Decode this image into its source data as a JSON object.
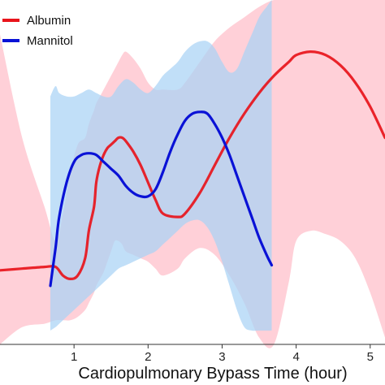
{
  "chart_data": {
    "type": "line",
    "title": "",
    "xlabel": "Cardiopulmonary Bypass Time (hour)",
    "ylabel": "",
    "xlim": [
      0,
      5.2
    ],
    "ylim": [
      0,
      1
    ],
    "x_ticks": [
      1,
      2,
      3,
      4,
      5
    ],
    "x_tick_labels": [
      "1",
      "2",
      "3",
      "4",
      "5"
    ],
    "grid": false,
    "legend_position": "top-left",
    "series": [
      {
        "name": "Albumin",
        "color": "#e8141b",
        "band_color": "#ffc0cb",
        "x": [
          0,
          0.3,
          0.6,
          0.75,
          0.85,
          0.95,
          1.05,
          1.15,
          1.2,
          1.27,
          1.3,
          1.35,
          1.4,
          1.45,
          1.5,
          1.55,
          1.6,
          1.65,
          1.7,
          1.8,
          1.9,
          2.0,
          2.1,
          2.2,
          2.4,
          2.5,
          2.7,
          2.9,
          3.1,
          3.3,
          3.5,
          3.7,
          3.9,
          4.0,
          4.2,
          4.4,
          4.6,
          4.8,
          5.0,
          5.2
        ],
        "y": [
          0.215,
          0.22,
          0.225,
          0.225,
          0.2,
          0.19,
          0.2,
          0.25,
          0.33,
          0.4,
          0.47,
          0.52,
          0.55,
          0.57,
          0.58,
          0.59,
          0.6,
          0.6,
          0.59,
          0.56,
          0.52,
          0.47,
          0.42,
          0.38,
          0.37,
          0.38,
          0.44,
          0.52,
          0.6,
          0.67,
          0.73,
          0.78,
          0.82,
          0.84,
          0.85,
          0.84,
          0.81,
          0.76,
          0.69,
          0.6
        ],
        "lower": [
          0.0,
          0.05,
          0.06,
          0.07,
          0.07,
          0.07,
          0.08,
          0.1,
          0.12,
          0.15,
          0.17,
          0.19,
          0.21,
          0.24,
          0.27,
          0.3,
          0.3,
          0.29,
          0.27,
          0.26,
          0.25,
          0.24,
          0.22,
          0.2,
          0.22,
          0.25,
          0.28,
          0.26,
          0.2,
          0.12,
          0.02,
          0.0,
          0.18,
          0.3,
          0.33,
          0.32,
          0.3,
          0.25,
          0.15,
          0.02
        ],
        "upper": [
          0.9,
          0.6,
          0.4,
          0.3,
          0.38,
          0.5,
          0.58,
          0.6,
          0.64,
          0.68,
          0.7,
          0.72,
          0.74,
          0.76,
          0.78,
          0.8,
          0.82,
          0.84,
          0.85,
          0.83,
          0.8,
          0.76,
          0.74,
          0.74,
          0.74,
          0.76,
          0.82,
          0.88,
          0.92,
          0.95,
          0.98,
          1.0,
          1.0,
          1.0,
          1.0,
          1.0,
          1.0,
          1.0,
          1.0,
          1.0
        ]
      },
      {
        "name": "Mannitol",
        "color": "#0a12d6",
        "band_color": "#a9d3f5",
        "x": [
          0.68,
          0.75,
          0.8,
          0.9,
          1.0,
          1.1,
          1.2,
          1.3,
          1.4,
          1.5,
          1.6,
          1.7,
          1.8,
          1.9,
          2.0,
          2.1,
          2.2,
          2.3,
          2.4,
          2.5,
          2.6,
          2.7,
          2.8,
          2.9,
          3.0,
          3.1,
          3.2,
          3.3,
          3.4,
          3.5,
          3.6,
          3.67
        ],
        "y": [
          0.17,
          0.28,
          0.37,
          0.47,
          0.53,
          0.55,
          0.555,
          0.55,
          0.53,
          0.51,
          0.49,
          0.46,
          0.44,
          0.43,
          0.43,
          0.45,
          0.5,
          0.56,
          0.61,
          0.65,
          0.67,
          0.675,
          0.67,
          0.64,
          0.6,
          0.55,
          0.49,
          0.43,
          0.37,
          0.31,
          0.26,
          0.23
        ],
        "lower": [
          0.04,
          0.05,
          0.06,
          0.08,
          0.1,
          0.12,
          0.14,
          0.16,
          0.18,
          0.2,
          0.22,
          0.23,
          0.24,
          0.25,
          0.26,
          0.27,
          0.29,
          0.31,
          0.33,
          0.35,
          0.36,
          0.36,
          0.34,
          0.3,
          0.24,
          0.17,
          0.1,
          0.05,
          0.04,
          0.04,
          0.04,
          0.04
        ],
        "upper": [
          0.72,
          0.75,
          0.73,
          0.72,
          0.72,
          0.73,
          0.74,
          0.73,
          0.72,
          0.72,
          0.75,
          0.77,
          0.76,
          0.74,
          0.73,
          0.75,
          0.78,
          0.8,
          0.82,
          0.85,
          0.87,
          0.88,
          0.88,
          0.86,
          0.82,
          0.79,
          0.8,
          0.85,
          0.9,
          0.95,
          0.98,
          1.0
        ]
      }
    ]
  }
}
